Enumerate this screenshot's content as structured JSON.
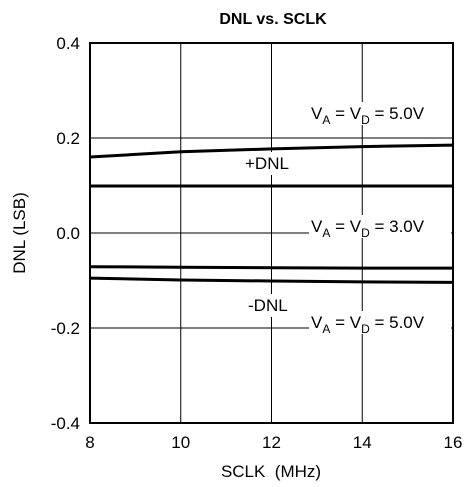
{
  "chart_data": {
    "type": "line",
    "title": "DNL vs. SCLK",
    "xlabel": "SCLK  (MHz)",
    "ylabel": "DNL (LSB)",
    "xlim": [
      8,
      16
    ],
    "ylim": [
      -0.4,
      0.4
    ],
    "xticks": [
      8,
      10,
      12,
      14,
      16
    ],
    "yticks": [
      -0.4,
      -0.2,
      0.0,
      0.2,
      0.4
    ],
    "xtick_labels": [
      "8",
      "10",
      "12",
      "14",
      "16"
    ],
    "ytick_labels": [
      "-0.4",
      "-0.2",
      "0.0",
      "0.2",
      "0.4"
    ],
    "grid": true,
    "series": [
      {
        "x": [
          8,
          10,
          12,
          14,
          16
        ],
        "values": [
          0.16,
          0.171,
          0.177,
          0.182,
          0.185
        ]
      },
      {
        "x": [
          8,
          10,
          12,
          14,
          16
        ],
        "values": [
          0.099,
          0.099,
          0.099,
          0.099,
          0.099
        ]
      },
      {
        "x": [
          8,
          10,
          12,
          14,
          16
        ],
        "values": [
          -0.071,
          -0.072,
          -0.073,
          -0.074,
          -0.074
        ]
      },
      {
        "x": [
          8,
          10,
          12,
          14,
          16
        ],
        "values": [
          -0.095,
          -0.099,
          -0.101,
          -0.103,
          -0.104
        ]
      }
    ],
    "annotations": [
      {
        "id": "top-cond",
        "parts": [
          "V",
          "A",
          " = V",
          "D",
          " = 5.0V"
        ]
      },
      {
        "id": "pos-dnl",
        "text": "+DNL"
      },
      {
        "id": "mid-cond",
        "parts": [
          "V",
          "A",
          " = V",
          "D",
          " = 3.0V"
        ]
      },
      {
        "id": "neg-dnl",
        "text": "-DNL"
      },
      {
        "id": "bot-cond",
        "parts": [
          "V",
          "A",
          " = V",
          "D",
          " = 5.0V"
        ]
      }
    ]
  }
}
